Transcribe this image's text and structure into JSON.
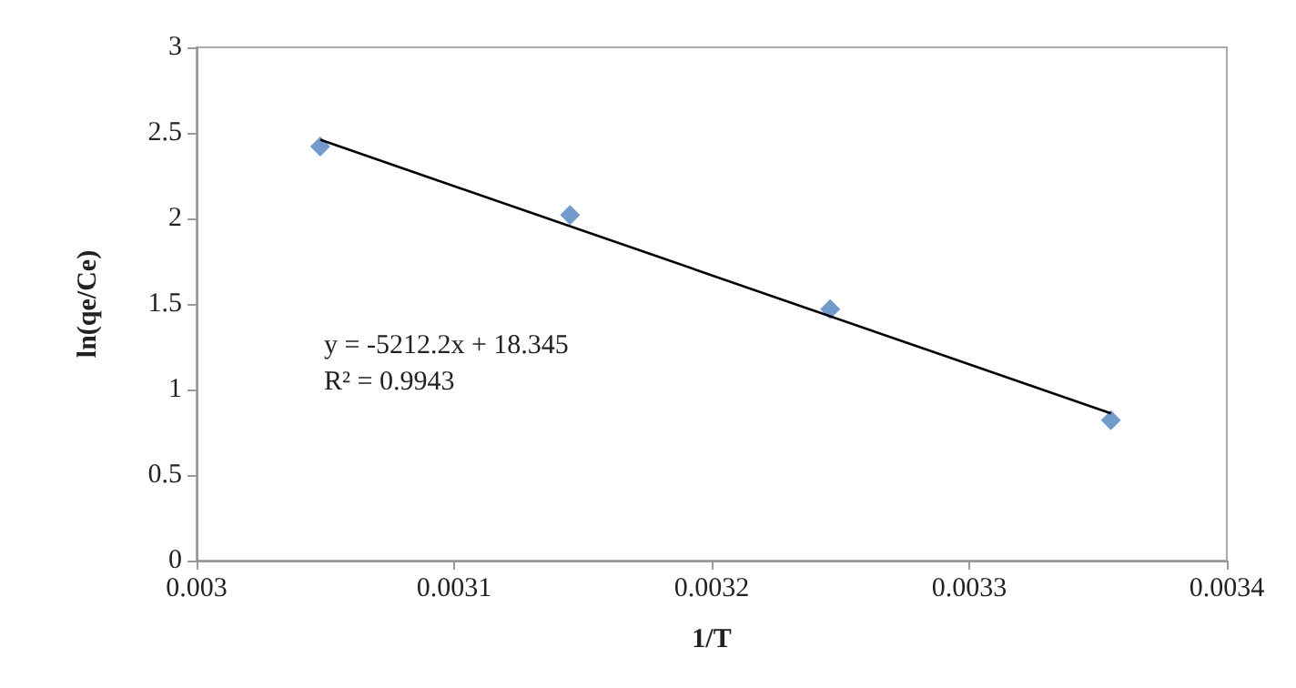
{
  "chart_data": {
    "type": "scatter",
    "xlabel": "1/T",
    "ylabel": "ln(qe/Ce)",
    "series": [
      {
        "color": "#4f81bd",
        "marker": "diamond",
        "x": [
          0.003048,
          0.003145,
          0.003246,
          0.003355
        ],
        "values": [
          2.42,
          2.02,
          1.47,
          0.82
        ]
      },
      {
        "type": "line",
        "color": "#000000",
        "marker": "none",
        "line_style": "solid",
        "x": [
          0.003048,
          0.003355
        ],
        "values": [
          2.46,
          0.86
        ]
      }
    ],
    "annotations": [
      "y = -5212.2x + 18.345\nR² = 0.9943"
    ],
    "xlim": [
      0.003,
      0.0034
    ],
    "xticks": [
      0.003,
      0.0031,
      0.0032,
      0.0033,
      0.0034
    ],
    "ylim": [
      0,
      3
    ],
    "yticks": [
      0,
      0.5,
      1,
      1.5,
      2,
      2.5,
      3
    ],
    "grid": false
  }
}
